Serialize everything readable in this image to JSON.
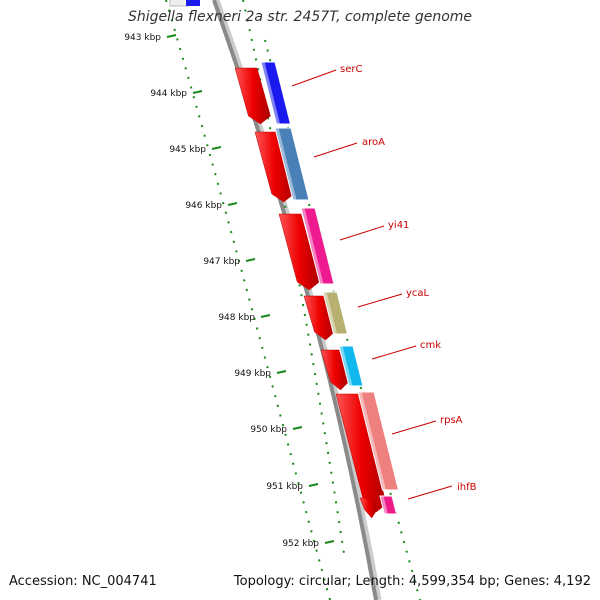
{
  "title": "Shigella flexneri 2a str. 2457T, complete genome",
  "accession": "Accession: NC_004741",
  "summary": "Topology: circular; Length: 4,599,354 bp; Genes: 4,192",
  "ruler": [
    {
      "label": "943 kbp"
    },
    {
      "label": "944 kbp"
    },
    {
      "label": "945 kbp"
    },
    {
      "label": "946 kbp"
    },
    {
      "label": "947 kbp"
    },
    {
      "label": "948 kbp"
    },
    {
      "label": "949 kbp"
    },
    {
      "label": "950 kbp"
    },
    {
      "label": "951 kbp"
    },
    {
      "label": "952 kbp"
    }
  ],
  "genes": [
    {
      "name": "serC",
      "color": "#1a1aee"
    },
    {
      "name": "aroA",
      "color": "#4a80b8"
    },
    {
      "name": "yi41",
      "color": "#ee1a90"
    },
    {
      "name": "ycaL",
      "color": "#b8b070"
    },
    {
      "name": "cmk",
      "color": "#10b8ee"
    },
    {
      "name": "rpsA",
      "color": "#ee8080"
    },
    {
      "name": "ihfB",
      "color": "#ee1a8a"
    }
  ],
  "colors": {
    "cds": "#ee0000",
    "backbone": "#888888",
    "ruler": "#1a8a1a",
    "label": "#cc0000"
  }
}
